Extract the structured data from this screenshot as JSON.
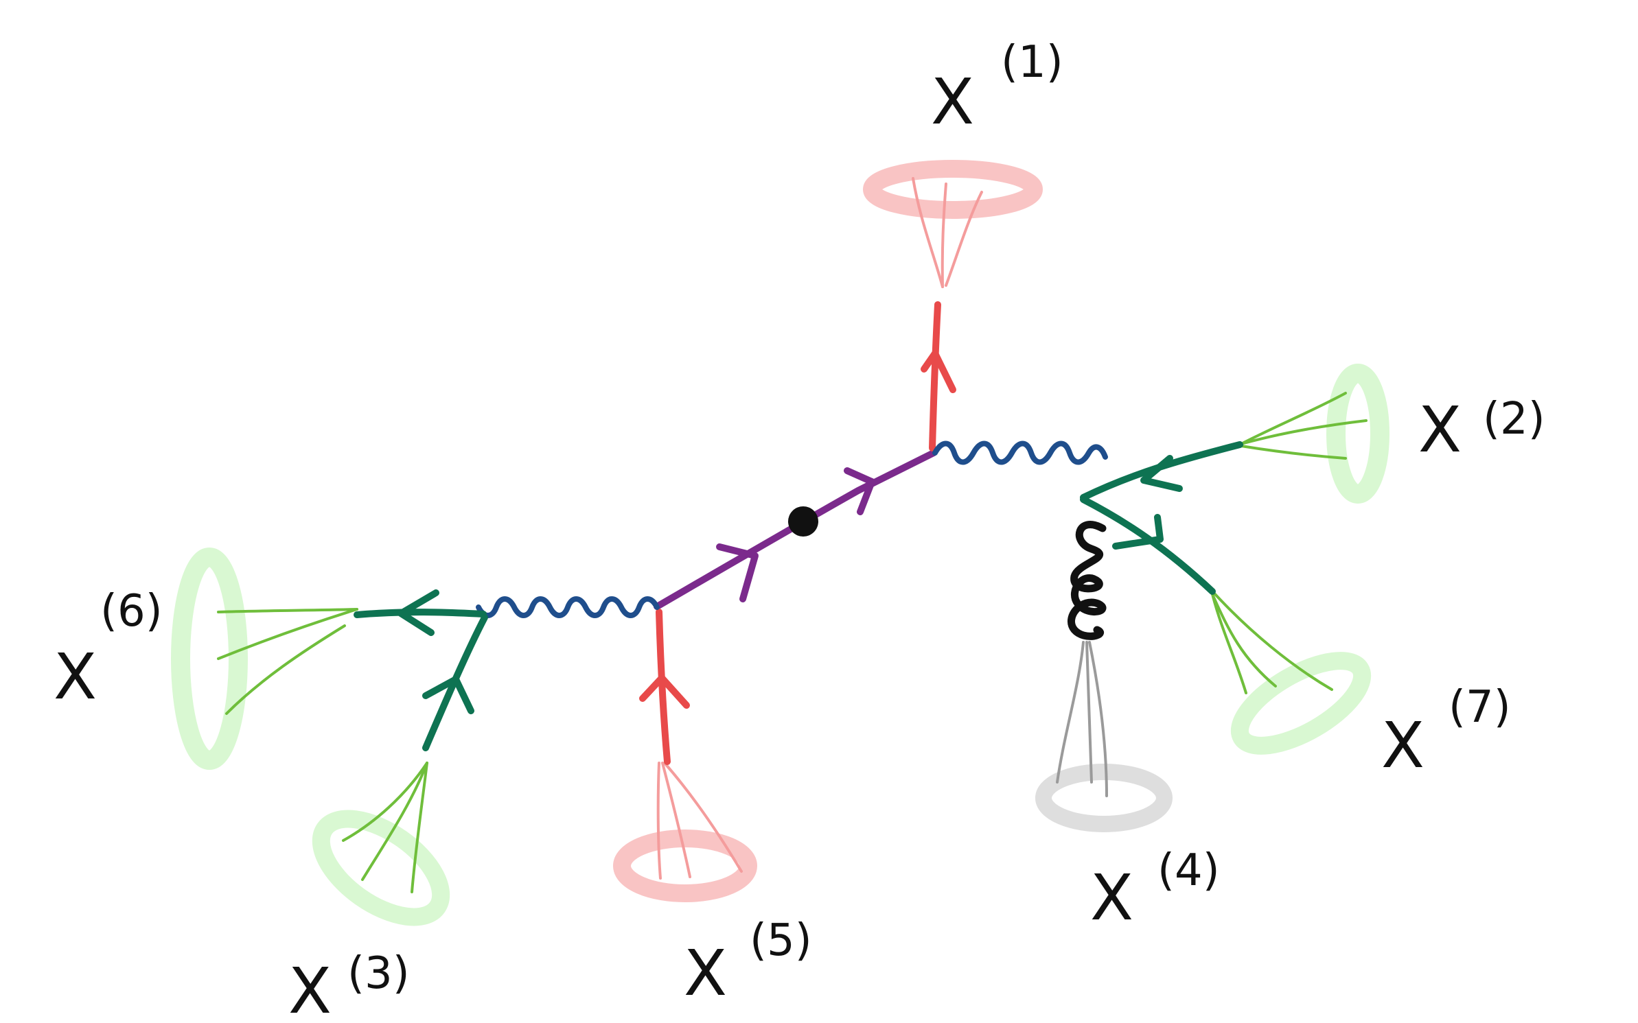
{
  "diagram": {
    "labels": [
      {
        "id": "x1",
        "base": "X",
        "sup": "(1)"
      },
      {
        "id": "x2",
        "base": "X",
        "sup": "(2)"
      },
      {
        "id": "x3",
        "base": "X",
        "sup": "(3)"
      },
      {
        "id": "x4",
        "base": "X",
        "sup": "(4)"
      },
      {
        "id": "x5",
        "base": "X",
        "sup": "(5)"
      },
      {
        "id": "x6",
        "base": "X",
        "sup": "(6)"
      },
      {
        "id": "x7",
        "base": "X",
        "sup": "(7)"
      }
    ],
    "colors": {
      "background": "#ffffff",
      "ink": "#111111",
      "central_fermion": "#7b2a8c",
      "photon": "#1f4e8c",
      "red_fermion": "#e84a4a",
      "red_cone_fill": "#f7a5a5",
      "red_halo": "#f9c4c4",
      "green_fermion": "#0e7352",
      "green_cone": "#6fbe3b",
      "green_halo": "#d9f8d2",
      "gluon": "#111111",
      "gray_cone": "#9a9a9a",
      "gray_halo": "#dedede"
    },
    "icons": {
      "vertex": "filled-black-dot",
      "arrow": "chevron-arrowhead",
      "photon": "wavy-line",
      "gluon": "curly-loop-line",
      "jet": "cone-with-halo"
    }
  }
}
